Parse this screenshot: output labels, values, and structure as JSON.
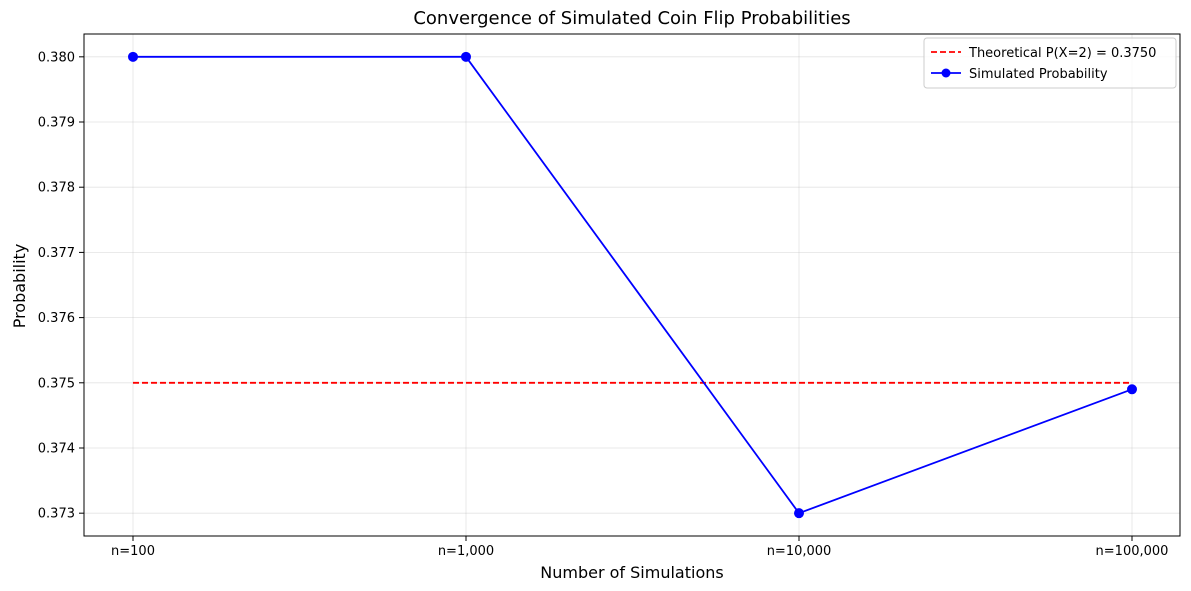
{
  "chart_data": {
    "type": "line",
    "title": "Convergence of Simulated Coin Flip Probabilities",
    "xlabel": "Number of Simulations",
    "ylabel": "Probability",
    "categories": [
      "n=100",
      "n=1,000",
      "n=10,000",
      "n=100,000"
    ],
    "ylim": [
      0.37265,
      0.38035
    ],
    "yticks": [
      0.373,
      0.374,
      0.375,
      0.376,
      0.377,
      0.378,
      0.379,
      0.38
    ],
    "ytick_labels": [
      "0.373",
      "0.374",
      "0.375",
      "0.376",
      "0.377",
      "0.378",
      "0.379",
      "0.380"
    ],
    "grid": true,
    "legend_position": "top-right",
    "reference_line": {
      "name": "Theoretical P(X=2) = 0.3750",
      "value": 0.375,
      "color": "#ff0000",
      "style": "dashed"
    },
    "series": [
      {
        "name": "Simulated Probability",
        "values": [
          0.38,
          0.38,
          0.373,
          0.3749
        ],
        "color": "#0000ff",
        "marker": "circle"
      }
    ]
  }
}
